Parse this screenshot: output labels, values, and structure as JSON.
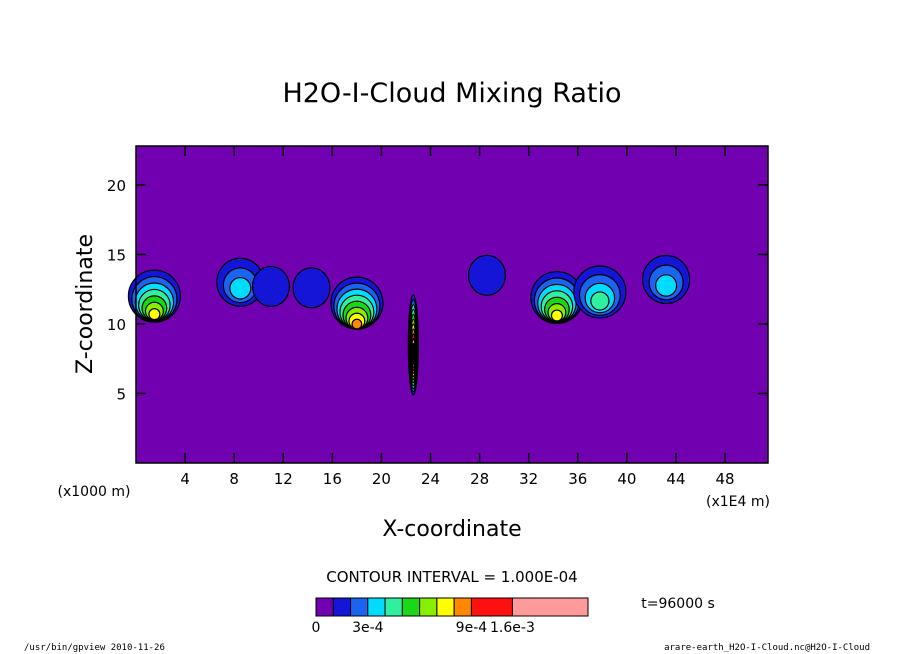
{
  "chart_data": {
    "type": "heatmap",
    "title": "H2O-I-Cloud Mixing Ratio",
    "xlabel": "X-coordinate",
    "ylabel": "Z-coordinate",
    "x_unit": "(x1E4 m)",
    "y_unit": "(x1000 m)",
    "xlim": [
      0,
      51.5
    ],
    "ylim": [
      0,
      22.8
    ],
    "x_ticks": [
      4,
      8,
      12,
      16,
      20,
      24,
      28,
      32,
      36,
      40,
      44,
      48
    ],
    "y_ticks": [
      5,
      10,
      15,
      20
    ],
    "background_color": "#7000b0",
    "contour_interval_text": "CONTOUR INTERVAL = 1.000E-04",
    "time_text": "t=96000 s",
    "colorbar": {
      "levels": [
        0,
        0.0001,
        0.0002,
        0.0003,
        0.0004,
        0.0005,
        0.0006,
        0.0007,
        0.0008,
        0.0009,
        0.0012,
        0.0016
      ],
      "colors": [
        "#7000b0",
        "#1515d8",
        "#1a64ef",
        "#00dcff",
        "#30f0a0",
        "#18d818",
        "#88ee00",
        "#ffff00",
        "#ff8800",
        "#ff1010",
        "#ff9a9a"
      ],
      "tick_labels": [
        "0",
        "3e-4",
        "9e-4",
        "1.6e-3"
      ]
    },
    "cloud_cells": [
      {
        "x": 1.5,
        "z": 12.0,
        "peak": 0.0007
      },
      {
        "x": 8.5,
        "z": 13.0,
        "peak": 0.0003
      },
      {
        "x": 11.0,
        "z": 12.7,
        "peak": 0.0001
      },
      {
        "x": 14.3,
        "z": 12.6,
        "peak": 0.0001
      },
      {
        "x": 18.0,
        "z": 11.5,
        "peak": 0.0008
      },
      {
        "x": 22.6,
        "z": 8.5,
        "peak": 0.0016
      },
      {
        "x": 28.6,
        "z": 13.5,
        "peak": 0.0001
      },
      {
        "x": 34.3,
        "z": 11.9,
        "peak": 0.0007
      },
      {
        "x": 37.8,
        "z": 12.3,
        "peak": 0.0004
      },
      {
        "x": 43.2,
        "z": 13.2,
        "peak": 0.0003
      }
    ]
  },
  "footer": {
    "left": "/usr/bin/gpview  2010-11-26",
    "right": "arare-earth_H2O-I-Cloud.nc@H2O-I-Cloud"
  }
}
